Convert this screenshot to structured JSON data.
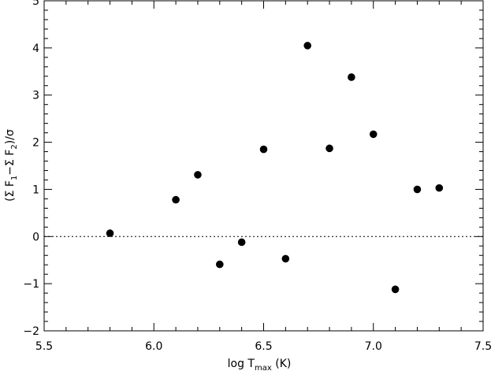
{
  "chart_data": {
    "type": "scatter",
    "title": "",
    "xlabel": {
      "pre": "log T",
      "sub": "max",
      "post": " (K)"
    },
    "ylabel": {
      "p1": "(Σ F",
      "s1": "1",
      "p2": "−Σ F",
      "s2": "2",
      "p3": ")/σ"
    },
    "xlim": [
      5.5,
      7.5
    ],
    "ylim": [
      -2,
      5
    ],
    "x_ticks": [
      5.5,
      6.0,
      6.5,
      7.0,
      7.5
    ],
    "x_tick_labels": [
      "5.5",
      "6.0",
      "6.5",
      "7.0",
      "7.5"
    ],
    "y_ticks": [
      -2,
      -1,
      0,
      1,
      2,
      3,
      4,
      5
    ],
    "y_tick_labels": [
      "−2",
      "−1",
      "0",
      "1",
      "2",
      "3",
      "4",
      "5"
    ],
    "reference_line": {
      "y": 0,
      "style": "dotted"
    },
    "points": [
      {
        "x": 5.8,
        "y": 0.07
      },
      {
        "x": 6.1,
        "y": 0.78
      },
      {
        "x": 6.2,
        "y": 1.31
      },
      {
        "x": 6.3,
        "y": -0.59
      },
      {
        "x": 6.4,
        "y": -0.12
      },
      {
        "x": 6.5,
        "y": 1.85
      },
      {
        "x": 6.6,
        "y": -0.47
      },
      {
        "x": 6.7,
        "y": 4.05
      },
      {
        "x": 6.8,
        "y": 1.87
      },
      {
        "x": 6.9,
        "y": 3.38
      },
      {
        "x": 7.0,
        "y": 2.17
      },
      {
        "x": 7.1,
        "y": -1.12
      },
      {
        "x": 7.2,
        "y": 1.0
      },
      {
        "x": 7.3,
        "y": 1.03
      }
    ],
    "grid": false,
    "marker_color": "#000000"
  }
}
